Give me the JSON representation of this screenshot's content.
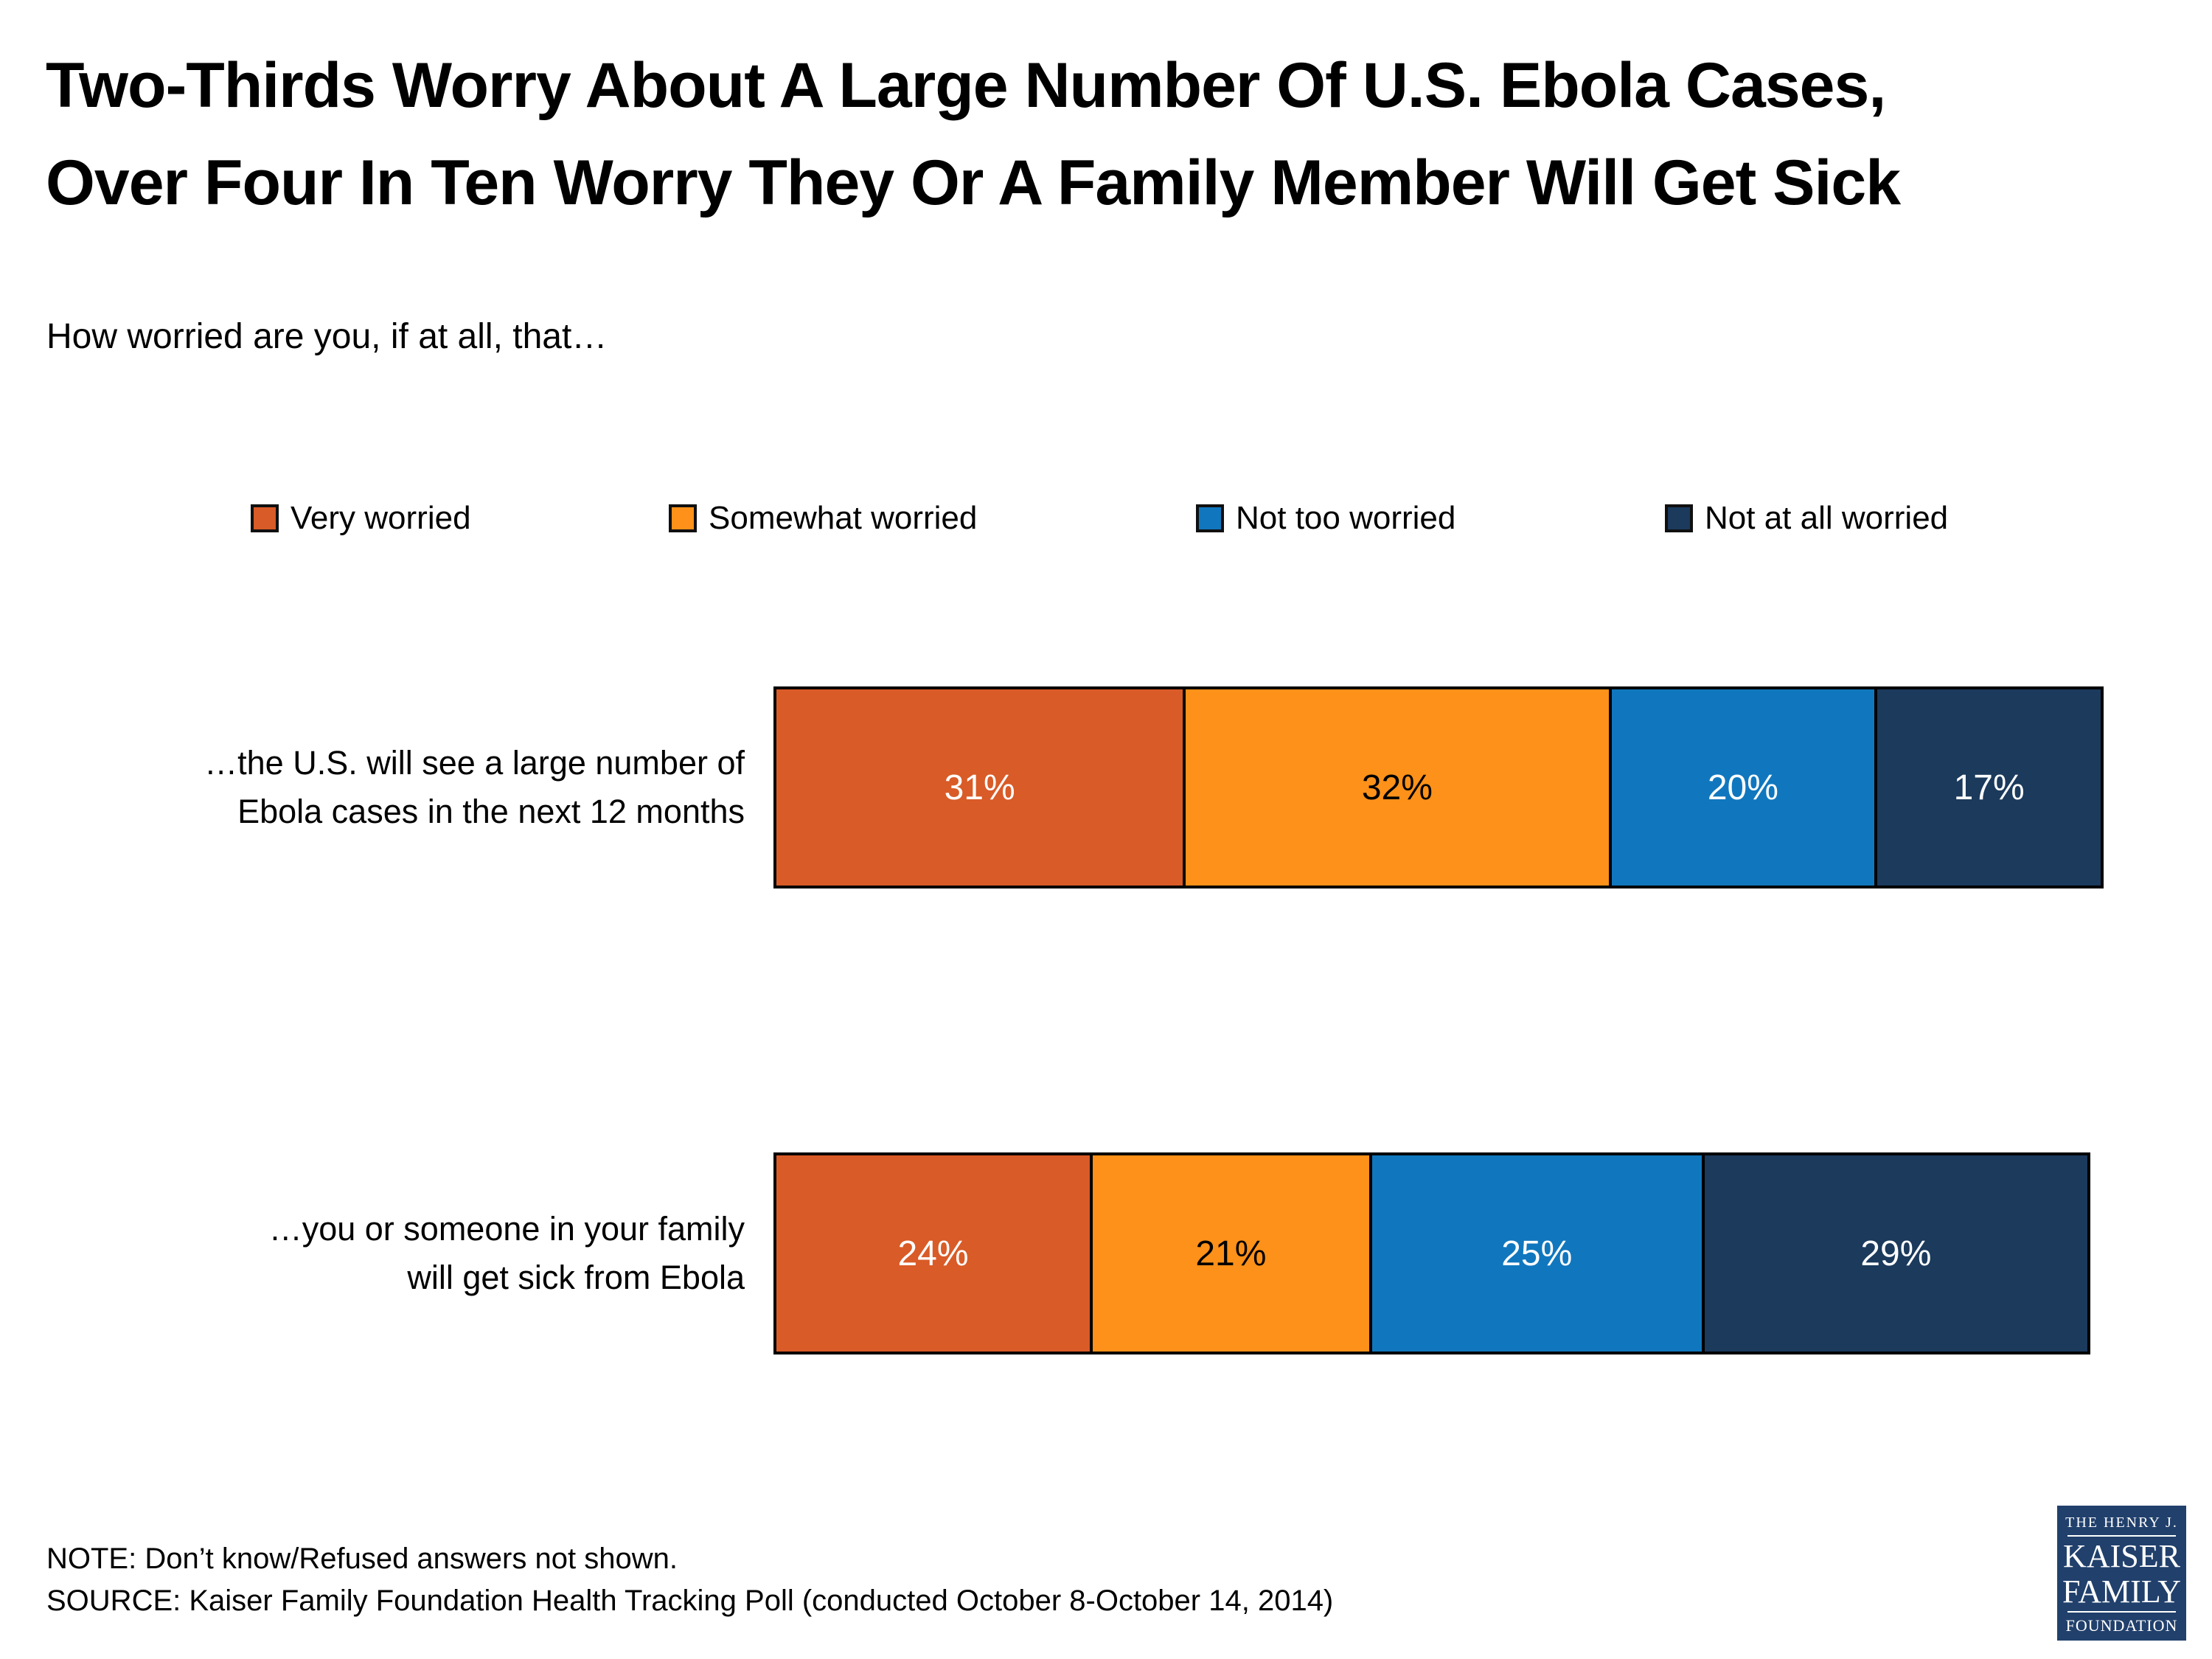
{
  "title": {
    "line1": "Two-Thirds Worry About A Large Number Of U.S. Ebola Cases,",
    "line2": "Over Four In Ten Worry They Or A Family Member Will Get Sick"
  },
  "subtitle": "How worried are you, if at all, that…",
  "legend": [
    {
      "label": "Very worried",
      "color": "#D95B27"
    },
    {
      "label": "Somewhat worried",
      "color": "#FD9119"
    },
    {
      "label": "Not too worried",
      "color": "#1077BE"
    },
    {
      "label": "Not at all worried",
      "color": "#1B3A5C"
    }
  ],
  "chart_data": {
    "type": "bar",
    "stacked": true,
    "orientation": "horizontal",
    "unit": "%",
    "xlim": [
      0,
      100
    ],
    "grid": false,
    "legend_position": "top",
    "categories": [
      "…the U.S. will see a large number of Ebola cases in the next 12 months",
      "…you or someone in your family will get sick from Ebola"
    ],
    "category_lines": [
      [
        "…the U.S. will see a large number of",
        "Ebola cases in the next 12 months"
      ],
      [
        "…you or someone in your family",
        "will get sick from Ebola"
      ]
    ],
    "series": [
      {
        "name": "Very worried",
        "color": "#D95B27",
        "label_color": "#FFFFFF",
        "values": [
          31,
          24
        ]
      },
      {
        "name": "Somewhat worried",
        "color": "#FD9119",
        "label_color": "#000000",
        "values": [
          32,
          21
        ]
      },
      {
        "name": "Not too worried",
        "color": "#1077BE",
        "label_color": "#FFFFFF",
        "values": [
          20,
          25
        ]
      },
      {
        "name": "Not at all worried",
        "color": "#1B3A5C",
        "label_color": "#FFFFFF",
        "values": [
          17,
          29
        ]
      }
    ]
  },
  "note": "NOTE: Don’t know/Refused answers not shown.",
  "source": "SOURCE: Kaiser Family Foundation Health Tracking Poll (conducted October 8-October 14, 2014)",
  "logo": {
    "line1": "THE HENRY J.",
    "line2": "KAISER",
    "line3": "FAMILY",
    "line4": "FOUNDATION",
    "bg_color": "#21406C"
  }
}
